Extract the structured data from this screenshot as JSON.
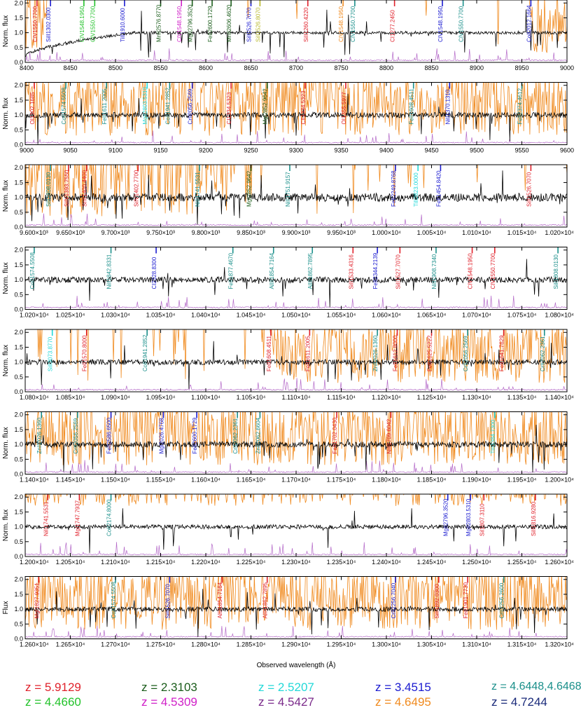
{
  "colors": {
    "axis": "#000000",
    "flux": "#000000",
    "telluric": "#f08a1e",
    "sky": "#b469c8",
    "label_default": "#000000"
  },
  "chart_data": {
    "type": "line",
    "xlabel": "Observed wavelength (Å)",
    "panels": [
      {
        "ylabel": "Norm. flux",
        "xlim": [
          8400,
          9000
        ],
        "ylim": [
          0,
          2.1
        ],
        "yticks": [
          0.0,
          0.5,
          1.0,
          1.5,
          2.0
        ],
        "xticks": [
          "8400",
          "8450",
          "8500",
          "8550",
          "8600",
          "8650",
          "8700",
          "8750",
          "8800",
          "8850",
          "8900",
          "8950",
          "9000"
        ],
        "continuum_shape": "rising",
        "noise": 0.05,
        "telluric": "edges",
        "seed": 1
      },
      {
        "ylabel": "Norm. flux",
        "xlim": [
          9000,
          9600
        ],
        "ylim": [
          0,
          2.1
        ],
        "yticks": [
          0.0,
          0.5,
          1.0,
          1.5,
          2.0
        ],
        "xticks": [
          "9000",
          "9050",
          "9100",
          "9150",
          "9200",
          "9250",
          "9300",
          "9350",
          "9400",
          "9450",
          "9500",
          "9550",
          "9600"
        ],
        "continuum_shape": "flat",
        "noise": 0.09,
        "telluric": "dense",
        "seed": 2
      },
      {
        "ylabel": "Norm. flux",
        "xlim": [
          9600,
          10200
        ],
        "ylim": [
          0,
          2.1
        ],
        "yticks": [
          0.0,
          0.5,
          1.0,
          1.5,
          2.0
        ],
        "xticks": [
          "9.600×10³",
          "9.650×10³",
          "9.700×10³",
          "9.750×10³",
          "9.800×10³",
          "9.850×10³",
          "9.900×10³",
          "9.950×10³",
          "1.000×10⁴",
          "1.005×10⁴",
          "1.010×10⁴",
          "1.015×10⁴",
          "1.020×10⁴"
        ],
        "continuum_shape": "flat",
        "noise": 0.14,
        "telluric": "left",
        "seed": 3
      },
      {
        "ylabel": "Norm. flux",
        "xlim": [
          10200,
          10800
        ],
        "ylim": [
          0,
          2.1
        ],
        "yticks": [
          0.0,
          0.5,
          1.0,
          1.5,
          2.0
        ],
        "xticks": [
          "1.020×10⁴",
          "1.025×10⁴",
          "1.030×10⁴",
          "1.035×10⁴",
          "1.040×10⁴",
          "1.045×10⁴",
          "1.050×10⁴",
          "1.055×10⁴",
          "1.060×10⁴",
          "1.065×10⁴",
          "1.070×10⁴",
          "1.075×10⁴",
          "1.080×10⁴"
        ],
        "continuum_shape": "flat",
        "noise": 0.1,
        "telluric": "none",
        "seed": 4
      },
      {
        "ylabel": "Norm. flux",
        "xlim": [
          10800,
          11400
        ],
        "ylim": [
          0,
          2.1
        ],
        "yticks": [
          0.0,
          0.5,
          1.0,
          1.5,
          2.0
        ],
        "xticks": [
          "1.080×10⁴",
          "1.085×10⁴",
          "1.090×10⁴",
          "1.095×10⁴",
          "1.100×10⁴",
          "1.105×10⁴",
          "1.110×10⁴",
          "1.115×10⁴",
          "1.120×10⁴",
          "1.125×10⁴",
          "1.130×10⁴",
          "1.135×10⁴",
          "1.140×10⁴"
        ],
        "continuum_shape": "flat",
        "noise": 0.09,
        "telluric": "right",
        "seed": 5
      },
      {
        "ylabel": "Norm. flux",
        "xlim": [
          11400,
          12000
        ],
        "ylim": [
          0,
          2.1
        ],
        "yticks": [
          0.0,
          0.5,
          1.0,
          1.5,
          2.0
        ],
        "xticks": [
          "1.140×10⁴",
          "1.145×10⁴",
          "1.150×10⁴",
          "1.155×10⁴",
          "1.160×10⁴",
          "1.165×10⁴",
          "1.170×10⁴",
          "1.175×10⁴",
          "1.180×10⁴",
          "1.185×10⁴",
          "1.190×10⁴",
          "1.195×10⁴",
          "1.200×10⁴"
        ],
        "continuum_shape": "flat",
        "noise": 0.1,
        "telluric": "dense",
        "seed": 6
      },
      {
        "ylabel": "Norm. flux",
        "xlim": [
          12000,
          12600
        ],
        "ylim": [
          0,
          2.1
        ],
        "yticks": [
          0.0,
          0.5,
          1.0,
          1.5,
          2.0
        ],
        "xticks": [
          "1.200×10⁴",
          "1.205×10⁴",
          "1.210×10⁴",
          "1.215×10⁴",
          "1.220×10⁴",
          "1.225×10⁴",
          "1.230×10⁴",
          "1.235×10⁴",
          "1.240×10⁴",
          "1.245×10⁴",
          "1.250×10⁴",
          "1.255×10⁴",
          "1.260×10⁴"
        ],
        "continuum_shape": "flat",
        "noise": 0.07,
        "telluric": "top",
        "seed": 7
      },
      {
        "ylabel": "Flux",
        "xlim": [
          12600,
          13200
        ],
        "ylim": [
          0,
          2.1
        ],
        "yticks": [
          0.0,
          0.5,
          1.0,
          1.5,
          2.0
        ],
        "xticks": [
          "1.260×10⁴",
          "1.265×10⁴",
          "1.270×10⁴",
          "1.275×10⁴",
          "1.280×10⁴",
          "1.285×10⁴",
          "1.290×10⁴",
          "1.295×10⁴",
          "1.300×10⁴",
          "1.305×10⁴",
          "1.310×10⁴",
          "1.315×10⁴",
          "1.320×10⁴"
        ],
        "continuum_shape": "flat",
        "noise": 0.08,
        "telluric": "dense",
        "seed": 8
      }
    ],
    "annotations": [
      [
        {
          "x": 8413,
          "text": "CIV1550.7700",
          "color": "#e0202a"
        },
        {
          "x": 8428,
          "text": "SiII1302.0300",
          "color": "#1a1ad0"
        },
        {
          "x": 8465,
          "text": "CIV1548.1950",
          "color": "#22c22a"
        },
        {
          "x": 8477,
          "text": "CIV1550.7700",
          "color": "#22c22a"
        },
        {
          "x": 8510,
          "text": "TiII1910.6000",
          "color": "#1a1ad0"
        },
        {
          "x": 8550,
          "text": "MnII2576.8770",
          "color": "#1a5c1a"
        },
        {
          "x": 8573,
          "text": "CIV1548.1950",
          "color": "#d020c8"
        },
        {
          "x": 8585,
          "text": "MgII2796.3520",
          "color": "#1a5c1a"
        },
        {
          "x": 8607,
          "text": "FeII2600.1729",
          "color": "#1a5c1a"
        },
        {
          "x": 8628,
          "text": "MnII2606.4620",
          "color": "#1a5c1a"
        },
        {
          "x": 8650,
          "text": "SiII1526.7070",
          "color": "#1a1ad0"
        },
        {
          "x": 8660,
          "text": "SiII1526.8070",
          "color": "#b8b82a"
        },
        {
          "x": 8713,
          "text": "SiII1260.4220",
          "color": "#e0202a"
        },
        {
          "x": 8752,
          "text": "CIV1548.1950",
          "color": "#f08a1e"
        },
        {
          "x": 8765,
          "text": "CIV1550.7700",
          "color": "#1a8f8a"
        },
        {
          "x": 8809,
          "text": "CI1277.2450",
          "color": "#e0202a"
        },
        {
          "x": 8862,
          "text": "CIV1548.1950",
          "color": "#1a1ad0"
        },
        {
          "x": 8885,
          "text": "CIV1550.7700",
          "color": "#1a8f8a"
        },
        {
          "x": 8960,
          "text": "CoII2012.1664",
          "color": "#1a1ad0"
        }
      ],
      [
        {
          "x": 9010,
          "text": "OI1302.1685",
          "color": "#e0202a"
        },
        {
          "x": 9045,
          "text": "CoII1574.5508",
          "color": "#1a8f8a"
        },
        {
          "x": 9090,
          "text": "FeII1611.2005",
          "color": "#1a8f8a"
        },
        {
          "x": 9135,
          "text": "MgII2803.5310",
          "color": "#22d8d8"
        },
        {
          "x": 9160,
          "text": "CoII1941.2852",
          "color": "#1a8f8a"
        },
        {
          "x": 9185,
          "text": "CrII2056.2569",
          "color": "#1a1ad0"
        },
        {
          "x": 9228,
          "text": "CI1334.5323",
          "color": "#e0202a"
        },
        {
          "x": 9268,
          "text": "MgI2852.9642",
          "color": "#1a5c1a"
        },
        {
          "x": 9310,
          "text": "CII1334.5323",
          "color": "#e0202a"
        },
        {
          "x": 9355,
          "text": "OI1355.5977",
          "color": "#e0202a"
        },
        {
          "x": 9430,
          "text": "FeII1608.4511",
          "color": "#1a8f8a"
        },
        {
          "x": 9470,
          "text": "NiII1370.1310",
          "color": "#1a1ad0"
        },
        {
          "x": 9550,
          "text": "FeII2374.4612",
          "color": "#1a8f8a"
        }
      ],
      [
        {
          "x": 9628,
          "text": "SiII1808.0130",
          "color": "#1a8f8a"
        },
        {
          "x": 9648,
          "text": "SiIV1393.7550",
          "color": "#e0202a"
        },
        {
          "x": 9668,
          "text": "SnII1400.4400",
          "color": "#e0202a"
        },
        {
          "x": 9725,
          "text": "SiIV1402.7700",
          "color": "#e0202a"
        },
        {
          "x": 9793,
          "text": "NiII1741.5531",
          "color": "#1a8f8a"
        },
        {
          "x": 9850,
          "text": "MgI2852.9642",
          "color": "#1a5c1a"
        },
        {
          "x": 9893,
          "text": "NiII1751.9157",
          "color": "#1a8f8a"
        },
        {
          "x": 10010,
          "text": "FeII2249.8768",
          "color": "#1a1ad0"
        },
        {
          "x": 10035,
          "text": "TiII2823.0000",
          "color": "#22d8d8"
        },
        {
          "x": 10060,
          "text": "FeII1454.8420",
          "color": "#1a1ad0"
        },
        {
          "x": 10160,
          "text": "SiII1526.7070",
          "color": "#e0202a"
        }
      ],
      [
        {
          "x": 10210,
          "text": "CoII1574.5508",
          "color": "#1a8f8a"
        },
        {
          "x": 10295,
          "text": "NiII1842.8331",
          "color": "#1a8f8a"
        },
        {
          "x": 10345,
          "text": "CI2328.8300",
          "color": "#1a1ad0"
        },
        {
          "x": 10430,
          "text": "FeII1877.4670",
          "color": "#1a8f8a"
        },
        {
          "x": 10475,
          "text": "AlIII1854.7164",
          "color": "#1a8f8a"
        },
        {
          "x": 10518,
          "text": "AlIII1862.7895",
          "color": "#1a8f8a"
        },
        {
          "x": 10563,
          "text": "SiII1533.4316",
          "color": "#e0202a"
        },
        {
          "x": 10590,
          "text": "FeII2344.2139",
          "color": "#1a1ad0"
        },
        {
          "x": 10615,
          "text": "SiII1527.7070",
          "color": "#e0202a"
        },
        {
          "x": 10655,
          "text": "NiII1908.7340",
          "color": "#1a8f8a"
        },
        {
          "x": 10695,
          "text": "CIV1548.1950",
          "color": "#e0202a"
        },
        {
          "x": 10720,
          "text": "CIV1550.7700",
          "color": "#e0202a"
        },
        {
          "x": 10790,
          "text": "SiII1808.0130",
          "color": "#1a8f8a"
        }
      ],
      [
        {
          "x": 10830,
          "text": "SiII3073.8770",
          "color": "#22d8d8"
        },
        {
          "x": 10868,
          "text": "FeII1570.8000",
          "color": "#e0202a"
        },
        {
          "x": 10935,
          "text": "CoII1941.2852",
          "color": "#1a8f8a"
        },
        {
          "x": 11072,
          "text": "FeII1608.4511",
          "color": "#e0202a"
        },
        {
          "x": 11115,
          "text": "FeII1611.2005",
          "color": "#e0202a"
        },
        {
          "x": 11190,
          "text": "ZnII2026.1360",
          "color": "#1a8f8a"
        },
        {
          "x": 11212,
          "text": "FeII1612.8000",
          "color": "#e0202a"
        },
        {
          "x": 11250,
          "text": "FeII1625.5222",
          "color": "#e0202a"
        },
        {
          "x": 11290,
          "text": "CrII2056.2569",
          "color": "#1a8f8a"
        },
        {
          "x": 11330,
          "text": "FeII1641.7629",
          "color": "#e0202a"
        },
        {
          "x": 11375,
          "text": "CrII2062.2361",
          "color": "#1a8f8a"
        }
      ],
      [
        {
          "x": 11418,
          "text": "ZnII2026.1360",
          "color": "#1a8f8a"
        },
        {
          "x": 11458,
          "text": "CrII2056.2569",
          "color": "#1a8f8a"
        },
        {
          "x": 11495,
          "text": "FeII2586.6500",
          "color": "#1a1ad0"
        },
        {
          "x": 11553,
          "text": "MgI2026.4768",
          "color": "#1a1ad0"
        },
        {
          "x": 11590,
          "text": "FeII2600.1729",
          "color": "#1a1ad0"
        },
        {
          "x": 11635,
          "text": "CrII2062.2361",
          "color": "#1a8f8a"
        },
        {
          "x": 11660,
          "text": "ZnII2062.6604",
          "color": "#1a8f8a"
        },
        {
          "x": 11745,
          "text": "FeII1702.0430",
          "color": "#e0202a"
        },
        {
          "x": 11805,
          "text": "NiII1709.6042",
          "color": "#e0202a"
        },
        {
          "x": 11920,
          "text": "TiII3384.7300",
          "color": "#22d8d8"
        }
      ],
      [
        {
          "x": 12025,
          "text": "NiII1741.5531",
          "color": "#e0202a"
        },
        {
          "x": 12060,
          "text": "MgI1747.7937",
          "color": "#e0202a"
        },
        {
          "x": 12095,
          "text": "CoII2174.8000",
          "color": "#1a8f8a"
        },
        {
          "x": 12468,
          "text": "MgII2796.3520",
          "color": "#1a1ad0"
        },
        {
          "x": 12493,
          "text": "MgII2803.5310",
          "color": "#1a1ad0"
        },
        {
          "x": 12508,
          "text": "SiI1807.3110",
          "color": "#e0202a"
        },
        {
          "x": 12565,
          "text": "SiII1816.9280",
          "color": "#e0202a"
        }
      ],
      [
        {
          "x": 12615,
          "text": "MgI1827.9351",
          "color": "#e0202a"
        },
        {
          "x": 12700,
          "text": "CoII1574.5508",
          "color": "#1a8f8a"
        },
        {
          "x": 12760,
          "text": "SiII1526.7070",
          "color": "#1a1ad0"
        },
        {
          "x": 12818,
          "text": "AlIII1854.7164",
          "color": "#e0202a"
        },
        {
          "x": 12868,
          "text": "AlIII1862.7895",
          "color": "#e0202a"
        },
        {
          "x": 13010,
          "text": "CrII2256.7040",
          "color": "#1a1ad0"
        },
        {
          "x": 13058,
          "text": "SiII1892.0300",
          "color": "#e0202a"
        },
        {
          "x": 13090,
          "text": "FeII1901.7730",
          "color": "#e0202a"
        },
        {
          "x": 13130,
          "text": "CrII2256.2600",
          "color": "#1a8f8a"
        }
      ]
    ]
  },
  "legend": [
    {
      "label": "z = 5.9129",
      "color": "#e0202a"
    },
    {
      "label": "z = 2.3103",
      "color": "#1a5c1a"
    },
    {
      "label": "z = 2.5207",
      "color": "#22d8d8"
    },
    {
      "label": "z = 3.4515",
      "color": "#1a1ad0"
    },
    {
      "label": "z = 4.6448,4.64680",
      "color": "#1a8f8a"
    },
    {
      "label": "z = 4.4660",
      "color": "#22c22a"
    },
    {
      "label": "z = 4.5309",
      "color": "#d020c8"
    },
    {
      "label": "z = 4.5427",
      "color": "#7a2a8a"
    },
    {
      "label": "z = 4.6495",
      "color": "#f08a1e"
    },
    {
      "label": "z = 4.7244",
      "color": "#1a2a7a"
    }
  ]
}
